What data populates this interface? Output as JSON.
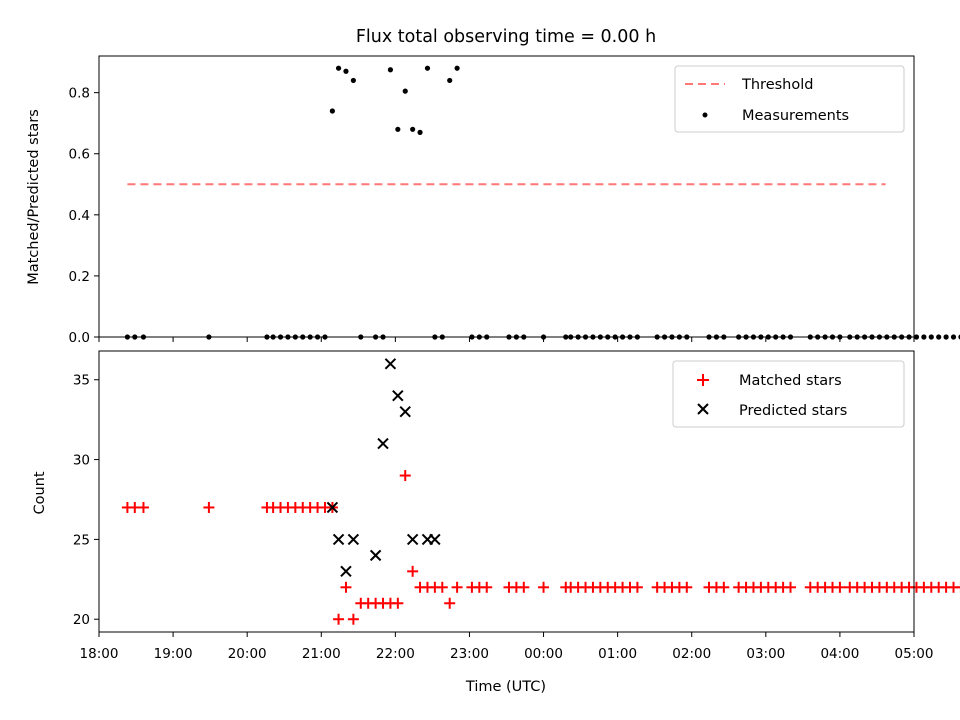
{
  "chart_data": [
    {
      "type": "scatter",
      "title": "Flux total observing time = 0.00 h",
      "ylabel": "Matched/Predicted stars",
      "xlabel": "",
      "xlim": [
        "18:00",
        "05:00"
      ],
      "ylim": [
        0,
        0.92
      ],
      "yticks": [
        "0.0",
        "0.2",
        "0.4",
        "0.6",
        "0.8"
      ],
      "threshold": {
        "name": "Threshold",
        "value": 0.5,
        "x_start": "18:23",
        "x_end": "04:37",
        "color": "#ff7777"
      },
      "series": [
        {
          "name": "Measurements",
          "color": "#000000",
          "x": [
            "18:23",
            "18:29",
            "18:36",
            "19:29",
            "20:16",
            "20:21",
            "20:27",
            "20:33",
            "20:39",
            "20:45",
            "20:51",
            "20:57",
            "21:03",
            "21:09",
            "21:14",
            "21:20",
            "21:26",
            "21:32",
            "21:44",
            "21:50",
            "21:56",
            "22:02",
            "22:08",
            "22:14",
            "22:20",
            "22:26",
            "22:32",
            "22:38",
            "22:44",
            "22:50",
            "23:02",
            "23:08",
            "23:14",
            "23:32",
            "23:38",
            "23:44",
            "24:00",
            "24:18",
            "24:22",
            "24:28",
            "24:34",
            "24:40",
            "24:46",
            "24:52",
            "24:58",
            "25:04",
            "25:10",
            "25:16",
            "25:32",
            "25:38",
            "25:44",
            "25:50",
            "25:56",
            "26:14",
            "26:20",
            "26:26",
            "26:38",
            "26:44",
            "26:50",
            "26:56",
            "27:02",
            "27:08",
            "27:14",
            "27:20",
            "27:36",
            "27:42",
            "27:48",
            "27:54",
            "28:00",
            "28:08",
            "28:14",
            "28:20",
            "28:26",
            "28:32",
            "28:38",
            "28:44",
            "28:50",
            "28:56",
            "29:02",
            "29:08",
            "29:14",
            "29:20",
            "29:26",
            "29:32",
            "29:38",
            "29:44"
          ],
          "y": [
            0,
            0,
            0,
            0,
            0,
            0,
            0,
            0,
            0,
            0,
            0,
            0,
            0,
            0.74,
            0.88,
            0.87,
            0.84,
            0,
            0,
            0,
            0.875,
            0.68,
            0.805,
            0.68,
            0.67,
            0.88,
            0,
            0,
            0.84,
            0.88,
            0,
            0,
            0,
            0,
            0,
            0,
            0,
            0,
            0,
            0,
            0,
            0,
            0,
            0,
            0,
            0,
            0,
            0,
            0,
            0,
            0,
            0,
            0,
            0,
            0,
            0,
            0,
            0,
            0,
            0,
            0,
            0,
            0,
            0,
            0,
            0,
            0,
            0,
            0,
            0,
            0,
            0,
            0,
            0,
            0,
            0,
            0,
            0,
            0,
            0,
            0,
            0,
            0,
            0,
            0,
            0
          ]
        }
      ]
    },
    {
      "type": "scatter",
      "title": "",
      "xlabel": "Time (UTC)",
      "ylabel": "Count",
      "xlim": [
        "18:00",
        "05:00"
      ],
      "ylim": [
        19.2,
        36.8
      ],
      "yticks": [
        "20",
        "25",
        "30",
        "35"
      ],
      "xticks": [
        "18:00",
        "19:00",
        "20:00",
        "21:00",
        "22:00",
        "23:00",
        "00:00",
        "01:00",
        "02:00",
        "03:00",
        "04:00",
        "05:00"
      ],
      "series": [
        {
          "name": "Matched stars",
          "marker": "+",
          "color": "#ff0000",
          "x": [
            "18:23",
            "18:29",
            "18:36",
            "19:29",
            "20:16",
            "20:21",
            "20:27",
            "20:33",
            "20:39",
            "20:45",
            "20:51",
            "20:57",
            "21:03",
            "21:09",
            "21:14",
            "21:20",
            "21:26",
            "21:32",
            "21:38",
            "21:44",
            "21:50",
            "21:56",
            "22:02",
            "22:08",
            "22:14",
            "22:20",
            "22:26",
            "22:32",
            "22:38",
            "22:44",
            "22:50",
            "23:02",
            "23:08",
            "23:14",
            "23:32",
            "23:38",
            "23:44",
            "24:00",
            "24:18",
            "24:22",
            "24:28",
            "24:34",
            "24:40",
            "24:46",
            "24:52",
            "24:58",
            "25:04",
            "25:10",
            "25:16",
            "25:32",
            "25:38",
            "25:44",
            "25:50",
            "25:56",
            "26:14",
            "26:20",
            "26:26",
            "26:38",
            "26:44",
            "26:50",
            "26:56",
            "27:02",
            "27:08",
            "27:14",
            "27:20",
            "27:36",
            "27:42",
            "27:48",
            "27:54",
            "28:00",
            "28:08",
            "28:14",
            "28:20",
            "28:26",
            "28:32",
            "28:38",
            "28:44",
            "28:50",
            "28:56",
            "29:02",
            "29:08",
            "29:14",
            "29:20",
            "29:26",
            "29:32",
            "29:38",
            "29:44"
          ],
          "y": [
            27,
            27,
            27,
            27,
            27,
            27,
            27,
            27,
            27,
            27,
            27,
            27,
            27,
            27,
            20,
            22,
            20,
            21,
            21,
            21,
            21,
            21,
            21,
            29,
            23,
            22,
            22,
            22,
            22,
            21,
            22,
            22,
            22,
            22,
            22,
            22,
            22,
            22,
            22,
            22,
            22,
            22,
            22,
            22,
            22,
            22,
            22,
            22,
            22,
            22,
            22,
            22,
            22,
            22,
            22,
            22,
            22,
            22,
            22,
            22,
            22,
            22,
            22,
            22,
            22,
            22,
            22,
            22,
            22,
            22,
            22,
            22,
            22,
            22,
            22,
            22,
            22,
            22,
            22,
            22,
            22,
            22,
            22,
            22,
            22,
            22,
            22
          ]
        },
        {
          "name": "Predicted stars",
          "marker": "x",
          "color": "#000000",
          "x": [
            "21:09",
            "21:14",
            "21:20",
            "21:26",
            "21:44",
            "21:50",
            "21:56",
            "22:02",
            "22:08",
            "22:14",
            "22:26",
            "22:32"
          ],
          "y": [
            27,
            25,
            23,
            25,
            24,
            31,
            36,
            34,
            33,
            25,
            25,
            25
          ]
        }
      ]
    }
  ],
  "legend1": {
    "threshold_label": "Threshold",
    "measurements_label": "Measurements"
  },
  "legend2": {
    "matched_label": "Matched stars",
    "predicted_label": "Predicted stars"
  }
}
